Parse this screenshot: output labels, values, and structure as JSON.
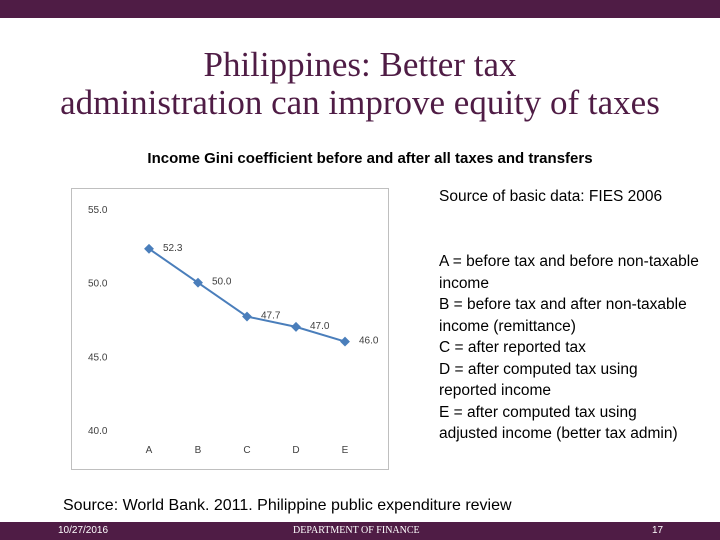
{
  "slide": {
    "title_line1": "Philippines: Better tax",
    "title_line2": "administration can improve equity of taxes",
    "chart_heading": "Income Gini coefficient before and after all taxes and transfers",
    "source_basic": "Source of basic data: FIES 2006",
    "legend_lines": [
      "A = before tax and before non-taxable income",
      "B = before tax and after non-taxable income (remittance)",
      "C = after reported tax",
      "D = after computed tax using reported income",
      "E = after computed tax using adjusted income (better tax admin)"
    ],
    "source": "Source: World Bank. 2011. Philippine public expenditure review"
  },
  "footer": {
    "date": "10/27/2016",
    "department": "DEPARTMENT OF FINANCE",
    "page": "17"
  },
  "colors": {
    "brand": "#4f1c45",
    "line": "#4a7ebb"
  },
  "chart_data": {
    "type": "line",
    "title": "",
    "xlabel": "",
    "ylabel": "",
    "categories": [
      "A",
      "B",
      "C",
      "D",
      "E"
    ],
    "series": [
      {
        "values": [
          52.3,
          50.0,
          47.7,
          47.0,
          46.0
        ]
      }
    ],
    "data_labels": [
      "52.3",
      "50.0",
      "47.7",
      "47.0",
      "46.0"
    ],
    "y_ticks": [
      "55.0",
      "50.0",
      "45.0",
      "40.0"
    ],
    "ylim": [
      40,
      55
    ],
    "grid": false,
    "legend": "none"
  }
}
